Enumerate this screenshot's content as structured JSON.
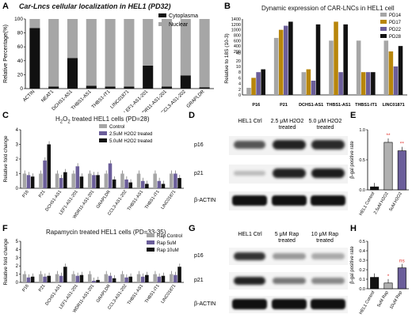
{
  "panels": {
    "A": {
      "letter": "A",
      "title": "Car-Lncs cellular localization in HEL1 (PD32)"
    },
    "B": {
      "letter": "B",
      "title": "Dynamic expression of CAR-LNCs in HEL1 cell"
    },
    "C": {
      "letter": "C",
      "title": "H2O2 treated HEL1 cells (PD=28)"
    },
    "D": {
      "letter": "D"
    },
    "E": {
      "letter": "E"
    },
    "F": {
      "letter": "F",
      "title": "Rapamycin treated HEL1 cells (PD=33-35)"
    },
    "G": {
      "letter": "G"
    },
    "H": {
      "letter": "H"
    }
  },
  "blot_D": {
    "lanes": [
      "HEL1 Ctrl",
      "2.5 μM H2O2 treated",
      "5.0 μM H2O2 treated"
    ],
    "rows": [
      "p16",
      "p21",
      "β-ACTIN"
    ]
  },
  "blot_G": {
    "lanes": [
      "HEL1 Ctrl",
      "5 μM Rap treated",
      "10 μM Rap treated"
    ],
    "rows": [
      "p16",
      "p21",
      "β-ACTIN"
    ]
  },
  "chart_data": [
    {
      "id": "A",
      "type": "bar",
      "stacked": true,
      "title": "Car-Lncs cellular localization in HEL1 (PD32)",
      "ylabel": "Relative Percentage(%)",
      "ylim": [
        0,
        100
      ],
      "yticks": [
        0,
        20,
        40,
        60,
        80,
        100
      ],
      "categories": [
        "ACTIN",
        "NEAT1",
        "DCHS1-AS1",
        "THBS1-AS1",
        "THBS1-IT1",
        "LINC01871",
        "LEF1-AS1-201",
        "WDR11-AS1-201",
        "CCL3-AS1-202",
        "GRAPLDR"
      ],
      "series": [
        {
          "name": "Cytoplasma",
          "color": "#111111",
          "values": [
            87,
            3,
            44,
            4,
            3,
            3,
            33,
            3,
            19,
            2
          ]
        },
        {
          "name": "Nuclear",
          "color": "#a6a6a6",
          "values": [
            13,
            97,
            56,
            96,
            97,
            97,
            67,
            97,
            81,
            98
          ]
        }
      ],
      "legend": "top-right"
    },
    {
      "id": "B",
      "type": "bar",
      "title": "Dynamic expression of CAR-LNCs in HEL1 cell",
      "ylabel": "Relative to 18S (10-3)",
      "yticks": [
        "0",
        "2",
        "4",
        "6",
        "8",
        "10",
        "20",
        "40",
        "200",
        "400",
        "600",
        "800",
        "1000",
        "1200",
        "1400"
      ],
      "categories": [
        "P16",
        "P21",
        "DCHS1-AS1",
        "THBS1-AS1",
        "THBS1-IT1",
        "LINC01871"
      ],
      "series": [
        {
          "name": "PD14",
          "color": "#a6a6a6",
          "values": [
            2.5,
            700,
            8,
            600,
            600,
            600
          ]
        },
        {
          "name": "PD17",
          "color": "#b8860b",
          "values": [
            6,
            1000,
            9,
            1300,
            8,
            90
          ]
        },
        {
          "name": "PD22",
          "color": "#6b5e9a",
          "values": [
            8,
            1150,
            5,
            8,
            8,
            10
          ]
        },
        {
          "name": "PD28",
          "color": "#111111",
          "values": [
            9,
            1300,
            1200,
            1200,
            8,
            400
          ]
        }
      ],
      "legend": "top-right"
    },
    {
      "id": "C",
      "type": "bar",
      "title": "H2O2 treated HEL1 cells (PD=28)",
      "ylabel": "Relative fold change",
      "ylim": [
        0,
        4
      ],
      "yticks": [
        0,
        1,
        2,
        3,
        4
      ],
      "categories": [
        "P16",
        "P21",
        "DCHS1-AS1",
        "LEF1-AS1-201",
        "WDR11-AS1-201",
        "GRAPLDR",
        "CCL3-AS1-202",
        "THBS1-AS1",
        "THBS1-IT1",
        "LINC01871"
      ],
      "series": [
        {
          "name": "Control",
          "color": "#a6a6a6",
          "values": [
            1,
            1,
            1,
            1,
            1,
            1,
            1,
            1,
            1,
            1
          ]
        },
        {
          "name": "2.5uM H2O2 treated",
          "color": "#6b5e9a",
          "values": [
            0.9,
            1.9,
            0.7,
            1.5,
            0.9,
            1.7,
            0.6,
            0.5,
            0.5,
            1.0
          ]
        },
        {
          "name": "5.0uM H2O2 treated",
          "color": "#111111",
          "values": [
            0.8,
            3.0,
            1.1,
            0.8,
            0.9,
            0.6,
            0.4,
            0.3,
            0.3,
            0.7
          ]
        }
      ],
      "legend": "top-right"
    },
    {
      "id": "E",
      "type": "bar",
      "ylabel": "β-gal positive rate",
      "ylim": [
        0,
        1.0
      ],
      "yticks": [
        "0.0",
        "0.5",
        "1.0"
      ],
      "categories": [
        "HEL1 Control",
        "2.5uM H2O2",
        "5uM H2O2"
      ],
      "series": [
        {
          "name": "",
          "values": [
            0.05,
            0.79,
            0.65
          ],
          "colors": [
            "#111111",
            "#b0b0b0",
            "#6b5e9a"
          ]
        }
      ],
      "annotations": [
        "",
        "**",
        "**"
      ]
    },
    {
      "id": "F",
      "type": "bar",
      "title": "Rapamycin treated HEL1 cells (PD=33-35)",
      "ylabel": "Relative fold change",
      "ylim": [
        0,
        5
      ],
      "yticks": [
        0,
        1,
        2,
        3,
        4,
        5
      ],
      "categories": [
        "P16",
        "P21",
        "DCHS1-AS1",
        "LEF1-AS1-201",
        "WDR11-AS1-201",
        "GRAPLDR",
        "CCL3-AS1-202",
        "THBS1-AS1",
        "THBS1-IT1",
        "LINC01871"
      ],
      "series": [
        {
          "name": "Rap Control",
          "color": "#a6a6a6",
          "values": [
            1,
            1,
            1,
            1,
            1,
            1,
            1,
            1,
            1,
            1
          ]
        },
        {
          "name": "Rap 5uM",
          "color": "#6b5e9a",
          "values": [
            0.6,
            0.7,
            0.8,
            0.8,
            0.2,
            0.8,
            0.6,
            0.7,
            0.7,
            0.9
          ]
        },
        {
          "name": "Rap 10uM",
          "color": "#111111",
          "values": [
            0.7,
            0.8,
            1.9,
            0.9,
            0.3,
            0.5,
            0.7,
            0.9,
            0.8,
            1.9
          ]
        }
      ],
      "legend": "top-right"
    },
    {
      "id": "H",
      "type": "bar",
      "ylabel": "β-gal positive rate",
      "ylim": [
        0,
        0.5
      ],
      "yticks": [
        "0.0",
        "0.1",
        "0.2",
        "0.3",
        "0.4",
        "0.5"
      ],
      "categories": [
        "HEL1 Control",
        "5uM Rap",
        "10uM Rap"
      ],
      "series": [
        {
          "name": "",
          "values": [
            0.12,
            0.06,
            0.22
          ],
          "colors": [
            "#111111",
            "#b0b0b0",
            "#6b5e9a"
          ]
        }
      ],
      "annotations": [
        "",
        "*",
        "ns"
      ]
    }
  ]
}
